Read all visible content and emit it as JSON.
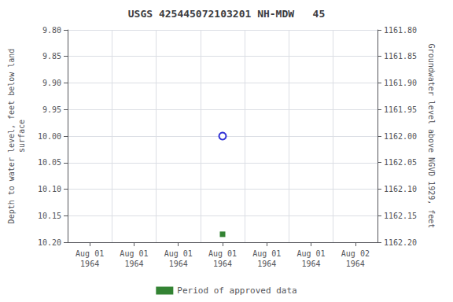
{
  "chart_data": {
    "type": "scatter",
    "title": "USGS 425445072103201 NH-MDW   45",
    "ylabel": "Depth to water level, feet below land\nsurface",
    "y2label": "Groundwater level above NGVD 1929, feet",
    "categories": [
      "Aug 01\n1964",
      "Aug 01\n1964",
      "Aug 01\n1964",
      "Aug 01\n1964",
      "Aug 01\n1964",
      "Aug 01\n1964",
      "Aug 02\n1964"
    ],
    "series": [
      {
        "color": "#0000cc",
        "marker": "open circle",
        "values": [
          null,
          null,
          null,
          10.0,
          null,
          null,
          null
        ]
      },
      {
        "name": "Period of approved data",
        "color": "#006400",
        "marker": "square",
        "values": [
          null,
          null,
          null,
          10.185,
          null,
          null,
          null
        ]
      }
    ],
    "ylim": [
      10.2,
      9.8
    ],
    "yticks": [
      {
        "value": 9.8,
        "label": "9.80"
      },
      9.85,
      {
        "value": 9.9,
        "label": "9.90"
      },
      9.95,
      {
        "value": 10.0,
        "label": "10.00"
      },
      10.05,
      {
        "value": 10.1,
        "label": "10.10"
      },
      10.15,
      {
        "value": 10.2,
        "label": "10.20"
      }
    ],
    "y2lim": [
      1162.2,
      1161.8
    ],
    "y2ticks": [
      {
        "value": 1162.2,
        "label": "1162.20"
      },
      1162.15,
      {
        "value": 1162.1,
        "label": "1162.10"
      },
      1162.05,
      {
        "value": 1162.0,
        "label": "1162.00"
      },
      1161.95,
      {
        "value": 1161.9,
        "label": "1161.90"
      },
      1161.85,
      {
        "value": 1161.8,
        "label": "1161.80"
      }
    ],
    "grid": true,
    "legend": "bottom"
  }
}
